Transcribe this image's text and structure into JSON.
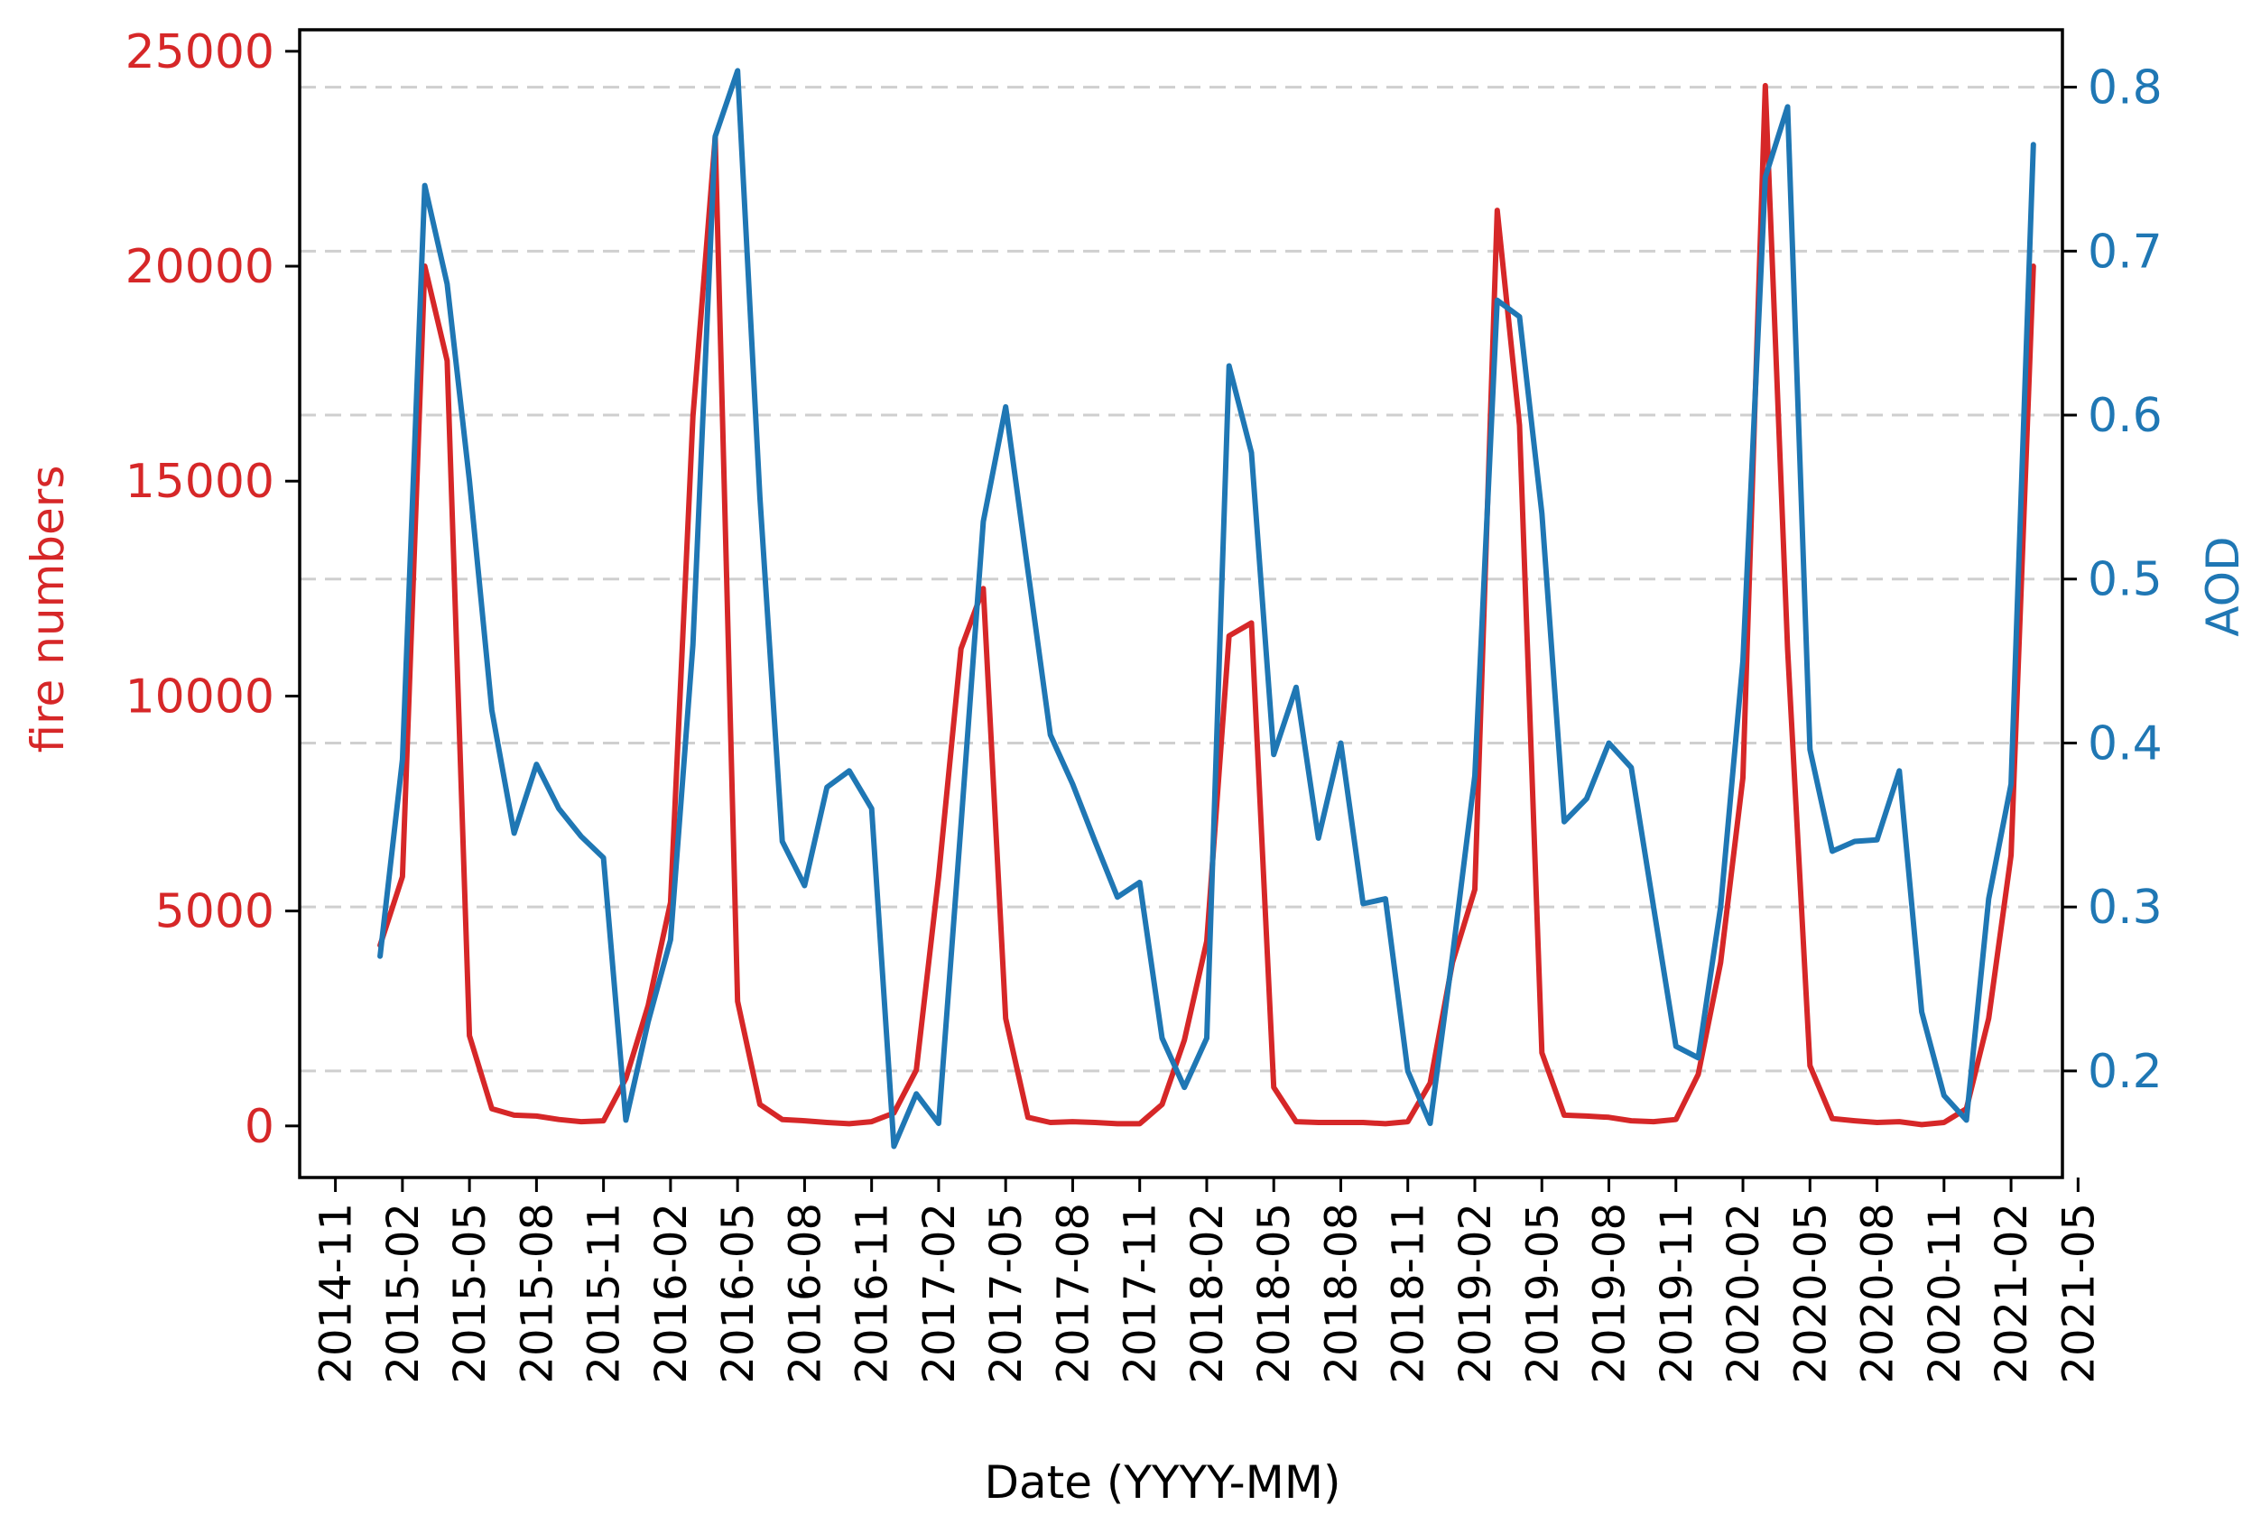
{
  "chart_data": {
    "type": "line",
    "title": "",
    "xlabel": "Date (YYYY-MM)",
    "ylabel_left": "fire numbers",
    "ylabel_right": "AOD",
    "ylim_left": [
      -1200,
      25500
    ],
    "ylim_right": [
      0.135,
      0.835
    ],
    "yticks_left": [
      {
        "value": 0,
        "label": "0"
      },
      {
        "value": 5000,
        "label": "5000"
      },
      {
        "value": 10000,
        "label": "10000"
      },
      {
        "value": 15000,
        "label": "15000"
      },
      {
        "value": 20000,
        "label": "20000"
      },
      {
        "value": 25000,
        "label": "25000"
      }
    ],
    "yticks_right": [
      {
        "value": 0.2,
        "label": "0.2"
      },
      {
        "value": 0.3,
        "label": "0.3"
      },
      {
        "value": 0.4,
        "label": "0.4"
      },
      {
        "value": 0.5,
        "label": "0.5"
      },
      {
        "value": 0.6,
        "label": "0.6"
      },
      {
        "value": 0.7,
        "label": "0.7"
      },
      {
        "value": 0.8,
        "label": "0.8"
      }
    ],
    "grid": "horizontal dashed at right-axis ticks",
    "xlim_month_index": [
      -0.6,
      78.3
    ],
    "xticks": [
      {
        "index": 1,
        "label": "2014-11"
      },
      {
        "index": 4,
        "label": "2015-02"
      },
      {
        "index": 7,
        "label": "2015-05"
      },
      {
        "index": 10,
        "label": "2015-08"
      },
      {
        "index": 13,
        "label": "2015-11"
      },
      {
        "index": 16,
        "label": "2016-02"
      },
      {
        "index": 19,
        "label": "2016-05"
      },
      {
        "index": 22,
        "label": "2016-08"
      },
      {
        "index": 25,
        "label": "2016-11"
      },
      {
        "index": 28,
        "label": "2017-02"
      },
      {
        "index": 31,
        "label": "2017-05"
      },
      {
        "index": 34,
        "label": "2017-08"
      },
      {
        "index": 37,
        "label": "2017-11"
      },
      {
        "index": 40,
        "label": "2018-02"
      },
      {
        "index": 43,
        "label": "2018-05"
      },
      {
        "index": 46,
        "label": "2018-08"
      },
      {
        "index": 49,
        "label": "2018-11"
      },
      {
        "index": 52,
        "label": "2019-02"
      },
      {
        "index": 55,
        "label": "2019-05"
      },
      {
        "index": 58,
        "label": "2019-08"
      },
      {
        "index": 61,
        "label": "2019-11"
      },
      {
        "index": 64,
        "label": "2020-02"
      },
      {
        "index": 67,
        "label": "2020-05"
      },
      {
        "index": 70,
        "label": "2020-08"
      },
      {
        "index": 73,
        "label": "2020-11"
      },
      {
        "index": 76,
        "label": "2021-02"
      },
      {
        "index": 79,
        "label": "2021-05"
      }
    ],
    "series": [
      {
        "name": "fire numbers",
        "axis": "left",
        "color": "#d62728",
        "x_start_index": 3,
        "values": [
          4200,
          5800,
          20000,
          17800,
          2100,
          400,
          250,
          230,
          150,
          100,
          120,
          1100,
          2800,
          5200,
          16500,
          23000,
          2900,
          500,
          150,
          120,
          80,
          50,
          100,
          300,
          1300,
          5800,
          11100,
          12500,
          2500,
          200,
          80,
          100,
          80,
          50,
          50,
          500,
          2000,
          4300,
          11400,
          11700,
          900,
          100,
          80,
          80,
          80,
          50,
          100,
          1000,
          3800,
          5500,
          21300,
          16300,
          1700,
          250,
          230,
          200,
          120,
          100,
          150,
          1200,
          3800,
          8100,
          24200,
          11100,
          1400,
          170,
          120,
          80,
          100,
          30,
          80,
          400,
          2500,
          6300,
          20000
        ]
      },
      {
        "name": "AOD",
        "axis": "right",
        "color": "#1f77b4",
        "x_start_index": 3,
        "values": [
          0.27,
          0.39,
          0.74,
          0.68,
          0.56,
          0.42,
          0.345,
          0.387,
          0.36,
          0.343,
          0.33,
          0.17,
          0.23,
          0.28,
          0.46,
          0.77,
          0.81,
          0.55,
          0.34,
          0.313,
          0.373,
          0.383,
          0.36,
          0.154,
          0.186,
          0.168,
          0.35,
          0.535,
          0.605,
          0.505,
          0.405,
          0.375,
          0.34,
          0.306,
          0.315,
          0.22,
          0.19,
          0.22,
          0.63,
          0.577,
          0.393,
          0.434,
          0.342,
          0.4,
          0.302,
          0.305,
          0.2,
          0.168,
          0.27,
          0.38,
          0.67,
          0.66,
          0.54,
          0.352,
          0.366,
          0.4,
          0.385,
          0.3,
          0.215,
          0.208,
          0.3,
          0.45,
          0.745,
          0.788,
          0.396,
          0.334,
          0.34,
          0.341,
          0.383,
          0.236,
          0.185,
          0.17,
          0.305,
          0.375,
          0.765
        ]
      }
    ]
  }
}
